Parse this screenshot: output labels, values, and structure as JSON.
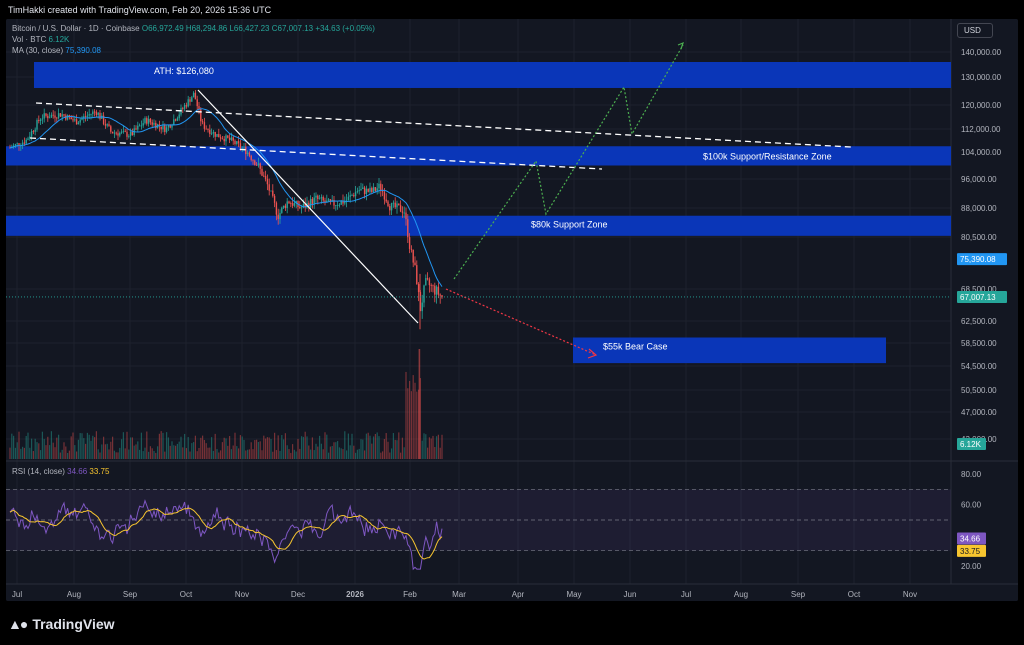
{
  "header": {
    "creator_line": "TimHakki created with TradingView.com, Feb 20, 2026 15:36 UTC"
  },
  "legend": {
    "symbol": "Bitcoin / U.S. Dollar · 1D · Coinbase",
    "ohlc": "O66,972.49 H68,294.86 L66,427.23 C67,007.13 +34.63 (+0.05%)",
    "vol_label": "Vol · BTC",
    "vol_value": "6.12K",
    "ma_label": "MA (30, close)",
    "ma_value": "75,390.08",
    "rsi_label": "RSI (14, close)",
    "rsi_value": "34.66",
    "rsi_ma_value": "33.75"
  },
  "currency_button": "USD",
  "brand": {
    "name": "TradingView",
    "icon": "tradingview-logo-icon"
  },
  "colors": {
    "background": "#131722",
    "zone": "#0a36b8",
    "up": "#26a69a",
    "down": "#ef5350",
    "ma": "#2196f3",
    "rsi": "#7e57c2",
    "rsi_ma": "#f7c52f",
    "bull_path": "#4caf50",
    "bear_path": "#f23645"
  },
  "chart_data": {
    "type": "candlestick",
    "title": "Bitcoin / U.S. Dollar · 1D · Coinbase",
    "y_tick_labels": [
      "140,000.00",
      "130,000.00",
      "120,000.00",
      "112,000.00",
      "104,000.00",
      "96,000.00",
      "88,000.00",
      "80,500.00",
      "68,500.00",
      "62,500.00",
      "58,500.00",
      "54,500.00",
      "50,500.00",
      "47,000.00",
      "43,000.00"
    ],
    "x_tick_labels": [
      "Jul",
      "Aug",
      "Sep",
      "Oct",
      "Nov",
      "Dec",
      "2026",
      "Feb",
      "Mar",
      "Apr",
      "May",
      "Jun",
      "Jul",
      "Aug",
      "Sep",
      "Oct",
      "Nov"
    ],
    "rsi_tick_labels": [
      "80.00",
      "60.00",
      "40.00",
      "20.00"
    ],
    "price_badges": [
      {
        "label": "75,390.08",
        "value": 75390.08,
        "color": "#2196f3"
      },
      {
        "label": "67,007.13",
        "value": 67007.13,
        "color": "#26a69a"
      },
      {
        "label": "6.12K",
        "value": 6120,
        "color": "#26a69a"
      }
    ],
    "rsi_badges": [
      {
        "label": "34.66",
        "value": 34.66,
        "color": "#7e57c2"
      },
      {
        "label": "33.75",
        "value": 33.75,
        "color": "#f7c52f"
      }
    ],
    "zones": [
      {
        "label": "ATH: $126,080",
        "low": 126080,
        "high": 136000
      },
      {
        "label": "$100k Support/Resistance Zone",
        "low": 100000,
        "high": 106000
      },
      {
        "label": "$80k Support Zone",
        "low": 80800,
        "high": 86000
      },
      {
        "label": "$55k Bear Case",
        "low": 55000,
        "high": 59500
      }
    ],
    "key_levels": {
      "ath": 126080,
      "last_close": 67007.13,
      "ma30": 75390.08
    },
    "rsi_levels": {
      "upper": 70,
      "middle": 50,
      "lower": 30
    }
  }
}
